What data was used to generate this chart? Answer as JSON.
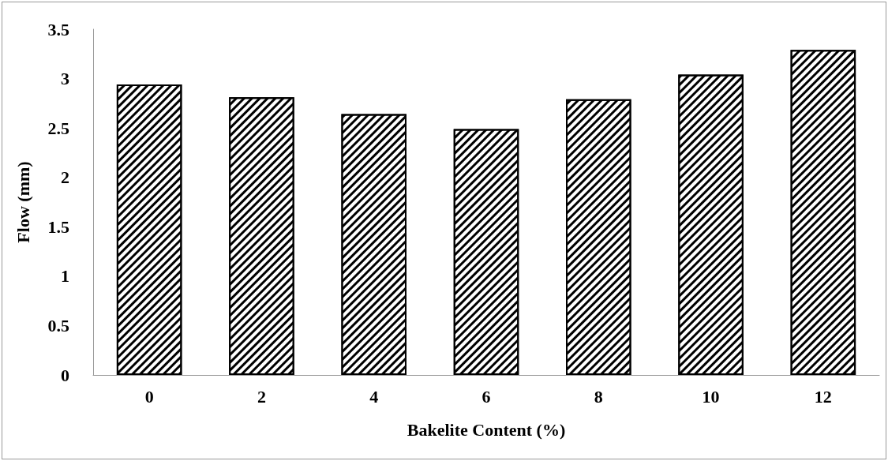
{
  "chart_data": {
    "type": "bar",
    "xlabel": "Bakelite Content (%)",
    "ylabel": "Flow (mm)",
    "categories": [
      "0",
      "2",
      "4",
      "6",
      "8",
      "10",
      "12"
    ],
    "values": [
      2.94,
      2.81,
      2.64,
      2.49,
      2.79,
      3.04,
      3.29
    ],
    "color": "#000000",
    "ylim": [
      0,
      3.5
    ],
    "yticks": [
      0,
      0.5,
      1,
      1.5,
      2,
      2.5,
      3,
      3.5
    ],
    "grid": false
  }
}
